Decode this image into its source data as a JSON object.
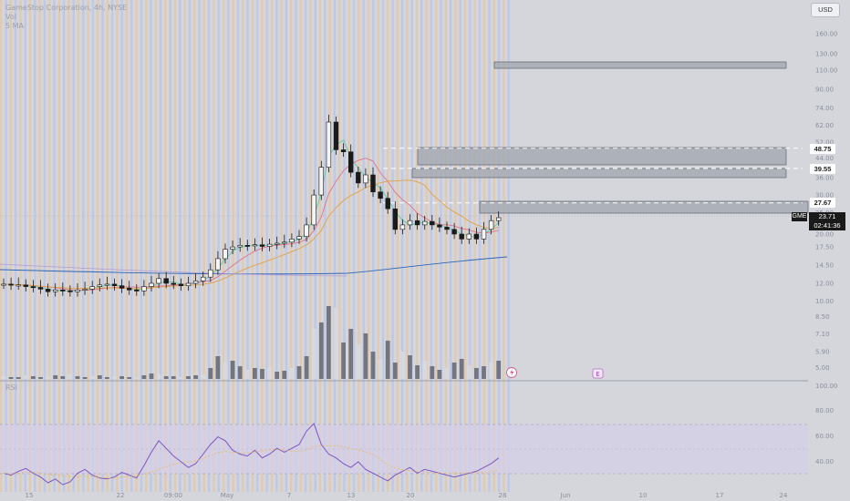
{
  "legend": {
    "symbol": "GameStop Corporation, 4h, NYSE",
    "vol": "Vol",
    "ma": "5 MA",
    "rsi": "RSI"
  },
  "currency": "USD",
  "ticker_label": "GME",
  "current_price": "23.71",
  "countdown": "02:41:36",
  "level_labels": [
    "48.75",
    "39.55",
    "27.67"
  ],
  "price_axis": [
    "160.00",
    "130.00",
    "110.00",
    "90.00",
    "74.00",
    "62.00",
    "52.00",
    "44.00",
    "36.00",
    "30.00",
    "25.00",
    "20.00",
    "17.50",
    "14.50",
    "12.00",
    "10.00",
    "8.50",
    "7.10",
    "5.90",
    "5.00"
  ],
  "rsi_axis": [
    "100.00",
    "80.00",
    "60.00",
    "40.00"
  ],
  "time_axis": [
    "15",
    "22",
    "09:00",
    "May",
    "7",
    "13",
    "20",
    "28",
    "Jun",
    "10",
    "17",
    "24"
  ],
  "earnings_marker": "E",
  "colors": {
    "background": "#d4d6dc",
    "stripe_orange": "#f3bb78",
    "stripe_blue": "#a4b6ec",
    "candle": "#1a1a1a",
    "ma_green": "#5fc9a1",
    "ma_pink": "#e0738c",
    "ma_orange": "#e2a24a",
    "ma_blue": "#2e66b8",
    "ma_violet": "#b09ad6",
    "rsi_line": "#7e57c2",
    "rsi_band": "#d6cfe8"
  },
  "chart_data": {
    "type": "candlestick",
    "symbol": "GameStop Corporation, 4h, NYSE",
    "candles_close_approx": [
      11.9,
      11.8,
      11.8,
      11.6,
      11.5,
      11.3,
      11.0,
      11.2,
      11.1,
      11.0,
      11.2,
      11.3,
      11.6,
      11.8,
      11.9,
      11.7,
      11.4,
      11.2,
      11.1,
      11.6,
      12.0,
      12.6,
      12.0,
      11.9,
      11.7,
      12.0,
      12.3,
      12.8,
      13.8,
      15.5,
      17.1,
      17.5,
      17.8,
      17.7,
      17.9,
      17.6,
      18.0,
      18.2,
      18.4,
      19.0,
      19.5,
      22.0,
      30.0,
      40.0,
      64.0,
      48.0,
      47.0,
      38.0,
      34.0,
      37.0,
      31.0,
      29.0,
      26.0,
      21.0,
      22.0,
      23.0,
      22.0,
      22.8,
      22.0,
      21.5,
      21.0,
      20.0,
      19.0,
      20.0,
      19.0,
      21.0,
      23.0,
      23.71
    ],
    "key_levels": [
      48.75,
      39.55,
      27.67
    ],
    "last_price": 23.71,
    "rsi_bounds": [
      30,
      70
    ]
  }
}
